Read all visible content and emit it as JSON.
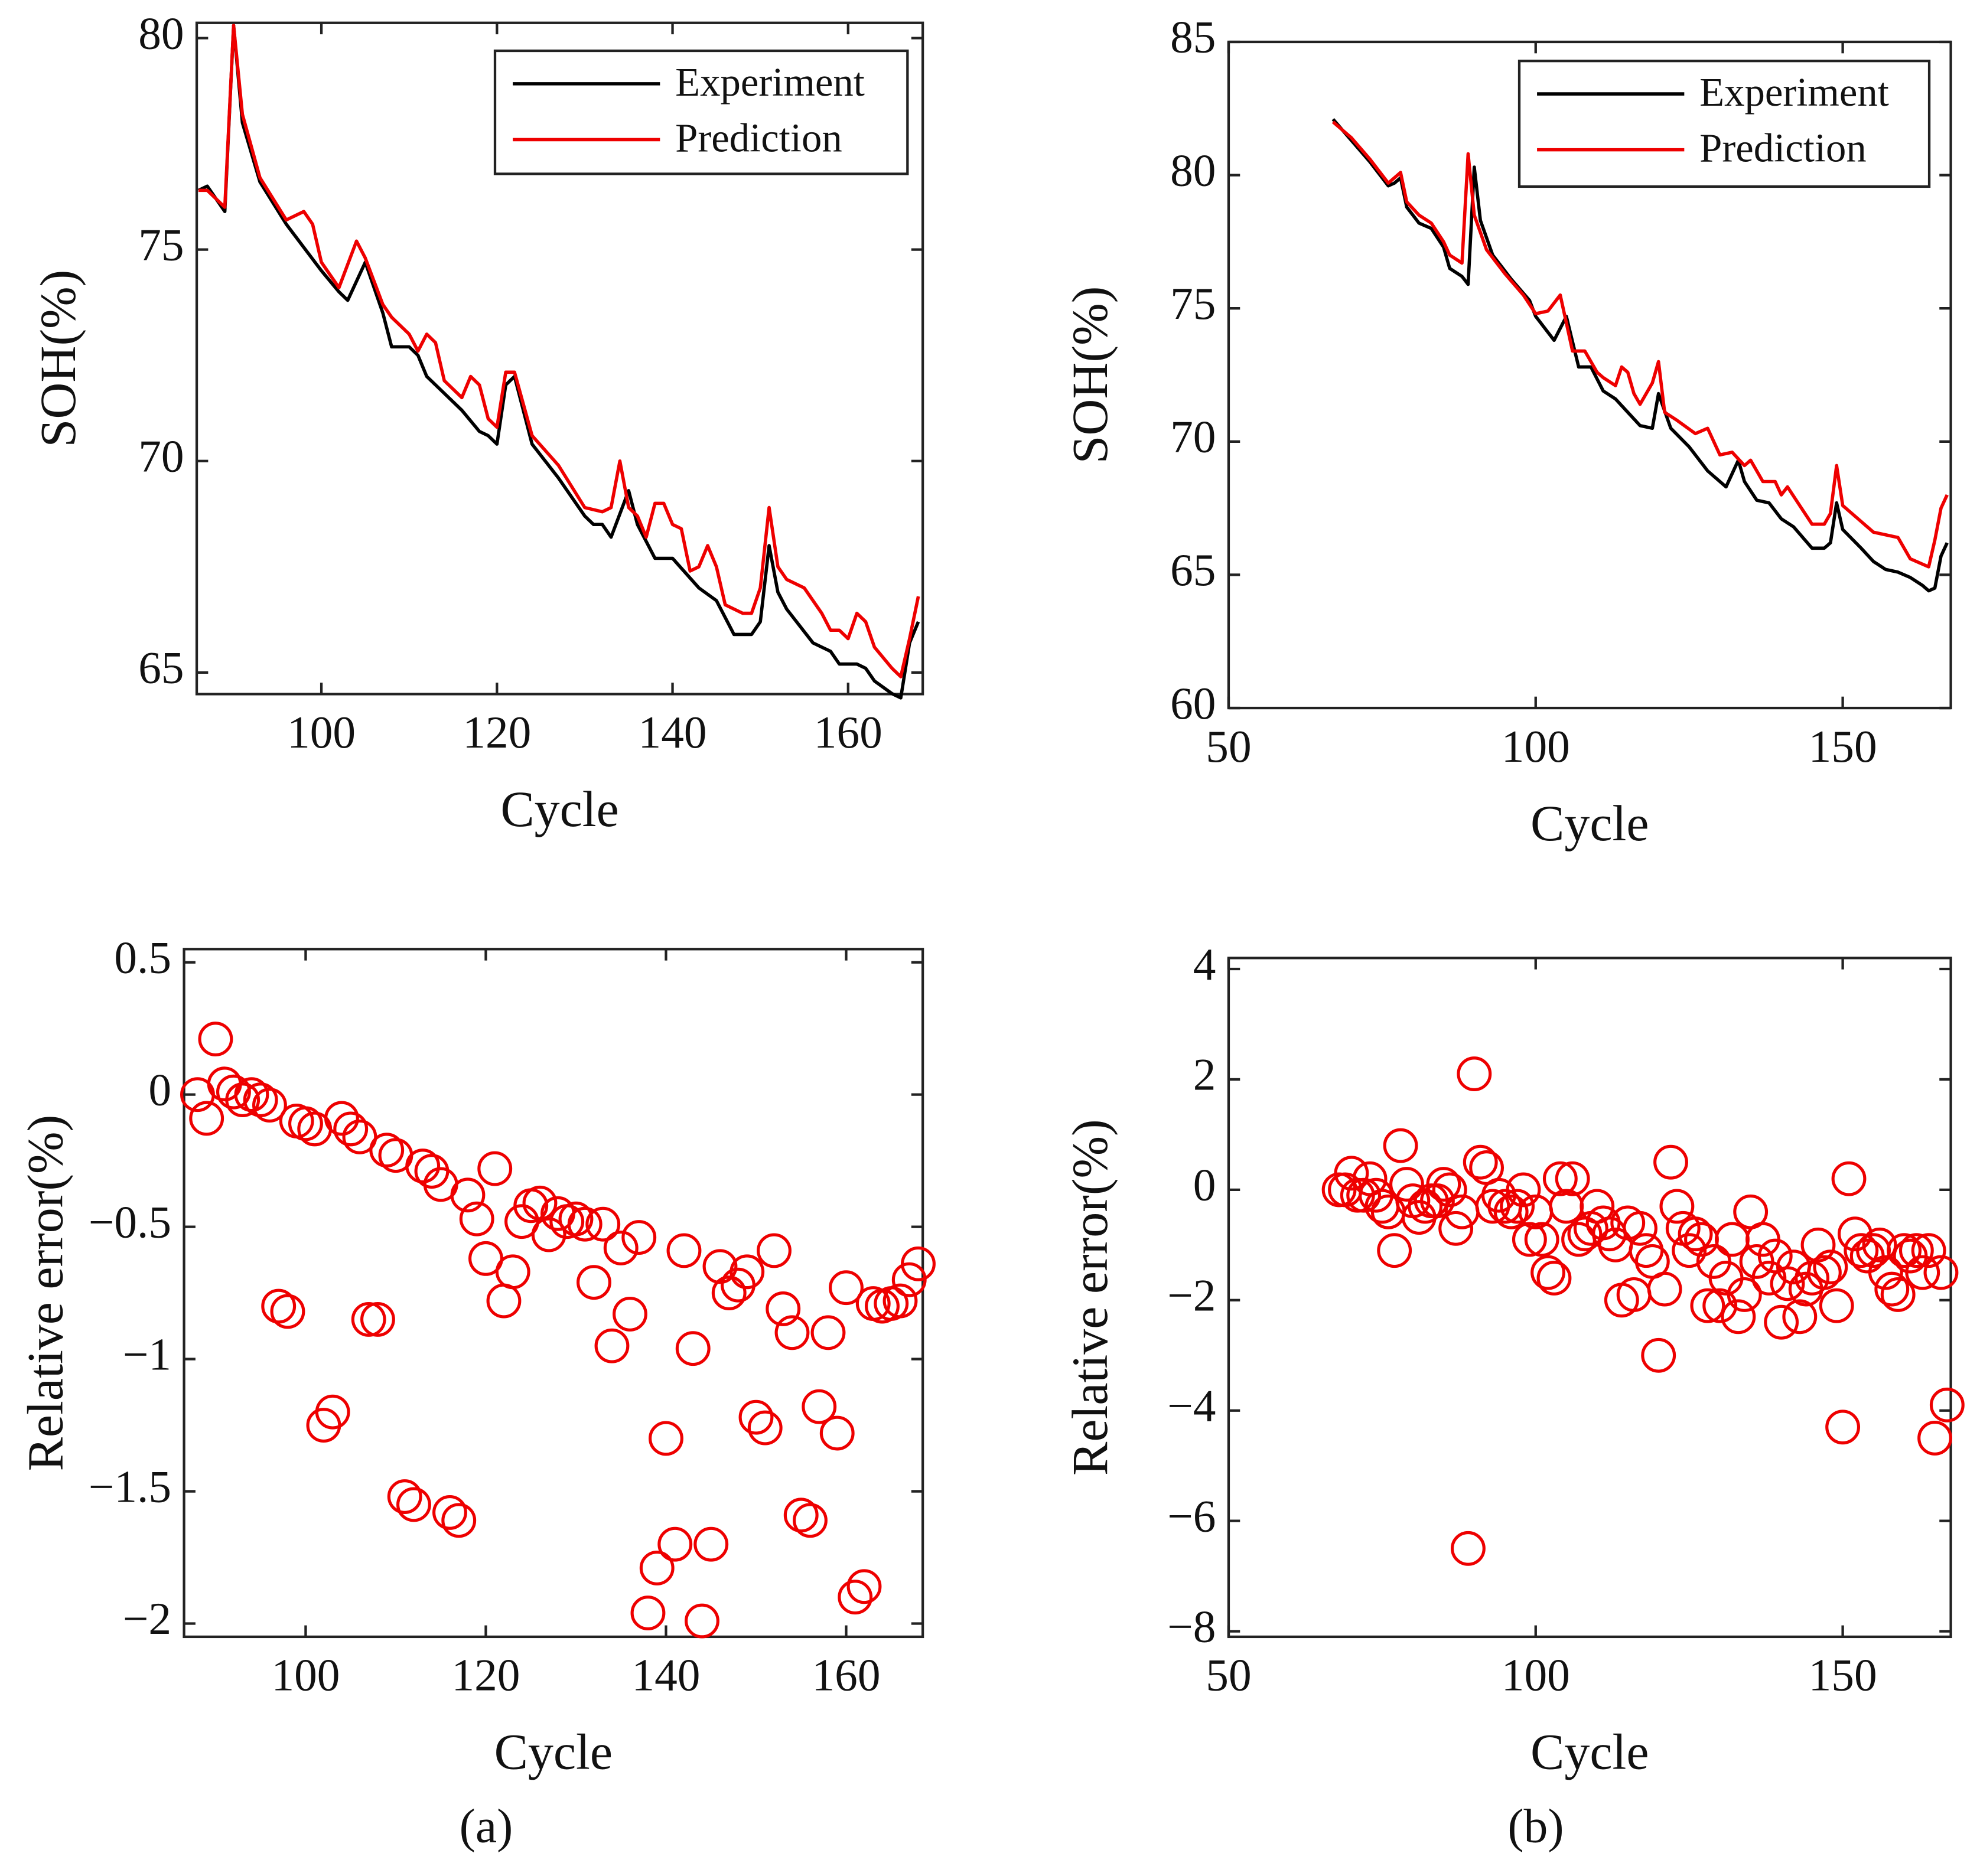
{
  "captions": [
    "(a)",
    "(b)"
  ],
  "chart_data": [
    {
      "type": "line",
      "xlabel": "Cycle",
      "ylabel": "SOH(%)",
      "xlim": [
        85.8,
        168.5
      ],
      "ylim": [
        64.49,
        80.36
      ],
      "xticks": [
        100,
        120,
        140,
        160
      ],
      "yticks": [
        65,
        70,
        75,
        80
      ],
      "legend": "upper right",
      "box": true,
      "series": [
        {
          "name": "Experiment",
          "color": "#000000",
          "x": [
            86,
            87,
            89,
            90,
            91,
            93,
            96,
            100,
            102,
            103,
            105,
            107,
            108,
            110,
            111,
            112,
            114,
            116,
            118,
            119,
            120,
            121,
            122,
            124,
            127,
            130,
            131,
            132,
            133,
            135,
            136,
            138,
            140,
            143,
            145,
            147,
            149,
            150,
            151,
            152,
            153,
            156,
            158,
            159,
            161,
            162,
            163,
            165,
            166,
            167,
            168
          ],
          "values": [
            76.4,
            76.5,
            75.9,
            80.3,
            78,
            76.6,
            75.6,
            74.5,
            74,
            73.8,
            74.7,
            73.5,
            72.7,
            72.7,
            72.5,
            72,
            71.6,
            71.2,
            70.7,
            70.6,
            70.4,
            71.8,
            72,
            70.4,
            69.6,
            68.7,
            68.5,
            68.5,
            68.2,
            69.3,
            68.5,
            67.7,
            67.7,
            67,
            66.7,
            65.9,
            65.9,
            66.2,
            68,
            66.9,
            66.5,
            65.7,
            65.5,
            65.2,
            65.2,
            65.1,
            64.8,
            64.5,
            64.4,
            65.7,
            66.2
          ]
        },
        {
          "name": "Prediction",
          "color": "#ee0000",
          "x": [
            86,
            87,
            89,
            90,
            91,
            93,
            96,
            98,
            99,
            100,
            102,
            104,
            105,
            107,
            108,
            110,
            111,
            112,
            113,
            114,
            116,
            117,
            118,
            119,
            120,
            121,
            122,
            124,
            127,
            130,
            132,
            133,
            134,
            135,
            136,
            137,
            138,
            139,
            140,
            141,
            142,
            143,
            144,
            145,
            146,
            148,
            149,
            150,
            151,
            152,
            153,
            155,
            157,
            158,
            159,
            160,
            161,
            162,
            163,
            165,
            166,
            167,
            168
          ],
          "values": [
            76.4,
            76.4,
            76,
            80.3,
            78.2,
            76.7,
            75.7,
            75.9,
            75.6,
            74.7,
            74.1,
            75.2,
            74.8,
            73.7,
            73.4,
            73,
            72.6,
            73,
            72.8,
            71.9,
            71.5,
            72,
            71.8,
            71,
            70.8,
            72.1,
            72.1,
            70.6,
            69.9,
            68.9,
            68.8,
            68.9,
            70,
            68.9,
            68.7,
            68.2,
            69,
            69,
            68.5,
            68.4,
            67.4,
            67.5,
            68,
            67.5,
            66.6,
            66.4,
            66.4,
            67,
            68.9,
            67.5,
            67.2,
            67,
            66.4,
            66,
            66,
            65.8,
            66.4,
            66.2,
            65.6,
            65.1,
            64.9,
            65.8,
            66.8
          ]
        }
      ]
    },
    {
      "type": "line",
      "xlabel": "Cycle",
      "ylabel": "SOH(%)",
      "xlim": [
        50,
        167.6
      ],
      "ylim": [
        60,
        85
      ],
      "xticks": [
        50,
        100,
        150
      ],
      "yticks": [
        60,
        65,
        70,
        75,
        80,
        85
      ],
      "legend": "upper right",
      "box": true,
      "series": [
        {
          "name": "Experiment",
          "color": "#000000",
          "x": [
            67,
            70,
            73,
            76,
            77,
            78,
            79,
            81,
            83,
            85,
            86,
            88,
            89,
            90,
            91,
            93,
            96,
            99,
            100,
            103,
            105,
            107,
            109,
            111,
            113,
            115,
            117,
            119,
            120,
            122,
            125,
            128,
            131,
            133,
            134,
            136,
            138,
            140,
            142,
            145,
            147,
            148,
            149,
            150,
            153,
            155,
            157,
            159,
            161,
            163,
            164,
            165,
            166,
            167
          ],
          "values": [
            82.1,
            81.3,
            80.5,
            79.6,
            79.7,
            79.9,
            78.8,
            78.2,
            78,
            77.3,
            76.5,
            76.2,
            75.9,
            80.3,
            78.3,
            77,
            76.1,
            75.3,
            74.7,
            73.8,
            74.7,
            72.8,
            72.8,
            71.9,
            71.6,
            71.1,
            70.6,
            70.5,
            71.8,
            70.5,
            69.8,
            68.9,
            68.3,
            69.3,
            68.5,
            67.8,
            67.7,
            67.1,
            66.8,
            66,
            66,
            66.2,
            67.7,
            66.7,
            66,
            65.5,
            65.2,
            65.1,
            64.9,
            64.6,
            64.4,
            64.5,
            65.7,
            66.2
          ]
        },
        {
          "name": "Prediction",
          "color": "#ee0000",
          "x": [
            67,
            70,
            73,
            76,
            78,
            79,
            81,
            83,
            85,
            86,
            88,
            89,
            90,
            92,
            95,
            98,
            100,
            102,
            104,
            106,
            108,
            110,
            111,
            113,
            114,
            115,
            116,
            117,
            119,
            120,
            121,
            123,
            126,
            128,
            130,
            132,
            134,
            135,
            137,
            139,
            140,
            141,
            143,
            145,
            147,
            148,
            149,
            150,
            153,
            155,
            157,
            159,
            161,
            163,
            164,
            165,
            166,
            167
          ],
          "values": [
            82,
            81.4,
            80.6,
            79.7,
            80.1,
            79,
            78.5,
            78.2,
            77.5,
            77,
            76.7,
            80.8,
            78.5,
            77.2,
            76.3,
            75.5,
            74.8,
            74.9,
            75.5,
            73.4,
            73.4,
            72.6,
            72.4,
            72.1,
            72.8,
            72.6,
            71.8,
            71.4,
            72.2,
            73,
            71.1,
            70.8,
            70.3,
            70.5,
            69.5,
            69.6,
            69.1,
            69.3,
            68.5,
            68.5,
            68,
            68.3,
            67.6,
            66.9,
            66.9,
            67.3,
            69.1,
            67.6,
            67,
            66.6,
            66.5,
            66.4,
            65.6,
            65.4,
            65.3,
            66.3,
            67.5,
            68
          ]
        }
      ]
    },
    {
      "type": "scatter",
      "xlabel": "Cycle",
      "ylabel": "Relative error(%)",
      "xlim": [
        86.5,
        168.5
      ],
      "ylim": [
        -2.05,
        0.55
      ],
      "xticks": [
        100,
        120,
        140,
        160
      ],
      "yticks": [
        {
          "value": -2,
          "label": "−2"
        },
        {
          "value": -1.5,
          "label": "−1.5"
        },
        {
          "value": -1,
          "label": "−1"
        },
        {
          "value": -0.5,
          "label": "−0.5"
        },
        0,
        0.5
      ],
      "color": "#ee0000",
      "box": true,
      "x": [
        88,
        89,
        90,
        91,
        92,
        93,
        94,
        95,
        96,
        97,
        98,
        99,
        100,
        101,
        102,
        103,
        104,
        105,
        106,
        107,
        108,
        109,
        110,
        111,
        112,
        113,
        114,
        115,
        116,
        117,
        118,
        119,
        120,
        121,
        122,
        123,
        124,
        125,
        126,
        127,
        128,
        129,
        130,
        131,
        132,
        133,
        134,
        135,
        136,
        137,
        138,
        139,
        140,
        141,
        142,
        143,
        144,
        145,
        146,
        147,
        148,
        149,
        150,
        151,
        152,
        153,
        154,
        155,
        156,
        157,
        158,
        159,
        160,
        161,
        162,
        163,
        164,
        165,
        166,
        167,
        168
      ],
      "values": [
        0,
        -0.09,
        0.21,
        0.04,
        0.01,
        -0.02,
        0,
        -0.02,
        -0.04,
        -0.8,
        -0.82,
        -0.1,
        -0.11,
        -0.13,
        -1.25,
        -1.2,
        -0.09,
        -0.13,
        -0.16,
        -0.85,
        -0.85,
        -0.21,
        -0.23,
        -1.52,
        -1.55,
        -0.27,
        -0.29,
        -0.34,
        -1.58,
        -1.61,
        -0.38,
        -0.47,
        -0.62,
        -0.28,
        -0.78,
        -0.67,
        -0.48,
        -0.42,
        -0.41,
        -0.53,
        -0.45,
        -0.48,
        -0.47,
        -0.49,
        -0.71,
        -0.49,
        -0.95,
        -0.58,
        -0.83,
        -0.54,
        -1.96,
        -1.79,
        -1.3,
        -1.7,
        -0.59,
        -0.96,
        -1.99,
        -1.7,
        -0.65,
        -0.75,
        -0.72,
        -0.67,
        -1.22,
        -1.26,
        -0.59,
        -0.81,
        -0.9,
        -1.59,
        -1.61,
        -1.18,
        -0.9,
        -1.28,
        -0.73,
        -1.9,
        -1.86,
        -0.79,
        -0.8,
        -0.79,
        -0.78,
        -0.7,
        -0.64
      ]
    },
    {
      "type": "scatter",
      "xlabel": "Cycle",
      "ylabel": "Relative error(%)",
      "xlim": [
        50,
        167.6
      ],
      "ylim": [
        -8.1,
        4.2
      ],
      "xticks": [
        50,
        100,
        150
      ],
      "yticks": [
        {
          "value": -8,
          "label": "−8"
        },
        {
          "value": -6,
          "label": "−6"
        },
        {
          "value": -4,
          "label": "−4"
        },
        {
          "value": -2,
          "label": "−2"
        },
        0,
        2,
        4
      ],
      "color": "#ee0000",
      "box": true,
      "x": [
        68,
        69,
        70,
        71,
        72,
        73,
        74,
        75,
        76,
        77,
        78,
        79,
        80,
        81,
        82,
        83,
        84,
        85,
        86,
        87,
        88,
        89,
        90,
        91,
        92,
        93,
        94,
        95,
        96,
        97,
        98,
        99,
        100,
        101,
        102,
        103,
        104,
        105,
        106,
        107,
        108,
        109,
        110,
        111,
        112,
        113,
        114,
        115,
        116,
        117,
        118,
        119,
        120,
        121,
        122,
        123,
        124,
        125,
        126,
        127,
        128,
        129,
        130,
        131,
        132,
        133,
        134,
        135,
        136,
        137,
        138,
        139,
        140,
        141,
        142,
        143,
        144,
        145,
        146,
        147,
        148,
        149,
        150,
        151,
        152,
        153,
        154,
        155,
        156,
        157,
        158,
        159,
        160,
        161,
        162,
        163,
        164,
        165,
        166,
        167
      ],
      "values": [
        0,
        0,
        0.3,
        -0.1,
        -0.1,
        0.2,
        -0.1,
        -0.3,
        -0.4,
        -1.1,
        0.8,
        0.1,
        -0.2,
        -0.5,
        -0.3,
        -0.2,
        -0.2,
        0.1,
        0,
        -0.7,
        -0.4,
        -6.5,
        2.1,
        0.5,
        0.4,
        -0.3,
        -0.1,
        -0.3,
        -0.4,
        -0.3,
        0,
        -0.9,
        -0.4,
        -0.9,
        -1.5,
        -1.6,
        0.2,
        -0.3,
        0.2,
        -0.9,
        -0.8,
        -0.7,
        -0.3,
        -0.6,
        -0.8,
        -1,
        -2,
        -0.6,
        -1.9,
        -0.7,
        -1.1,
        -1.3,
        -3,
        -1.8,
        0.5,
        -0.3,
        -0.7,
        -1.1,
        -0.8,
        -0.9,
        -2.1,
        -1.3,
        -2.1,
        -1.6,
        -0.9,
        -2.3,
        -1.9,
        -0.4,
        -1.3,
        -0.9,
        -1.6,
        -1.2,
        -2.4,
        -1.7,
        -1.4,
        -2.3,
        -1.8,
        -1.6,
        -1,
        -1.5,
        -1.4,
        -2.1,
        -4.3,
        0.2,
        -0.8,
        -1.1,
        -1.2,
        -1.1,
        -1,
        -1.5,
        -1.8,
        -1.9,
        -1.1,
        -1.2,
        -1.1,
        -1.5,
        -1.1,
        -4.5,
        -1.5,
        -3.9
      ]
    }
  ]
}
